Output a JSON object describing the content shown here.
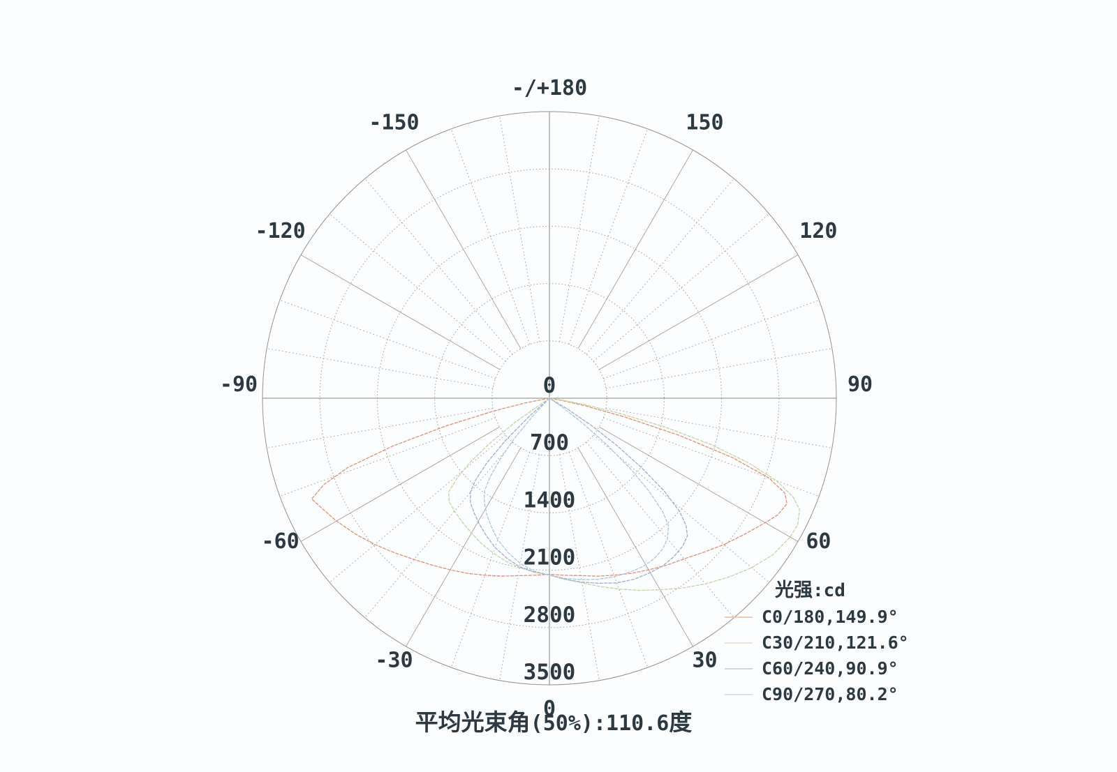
{
  "page": {
    "background": "#fcfdff",
    "text_color": "#2c3940"
  },
  "legend": {
    "title_cjk": "光强",
    "title_unit": ":cd"
  },
  "caption": {
    "prefix": "平均光束角",
    "value": "(50%):110.6",
    "suffix": "度",
    "full": "平均光束角(50%):110.6度",
    "avg_beam_angle_50pct_deg": 110.6
  },
  "chart_data": {
    "type": "line",
    "projection": "polar",
    "units": "cd",
    "angle_zero_position": "bottom",
    "rlim": [
      0,
      3500
    ],
    "radial_ticks": [
      0,
      700,
      1400,
      2100,
      2800,
      3500
    ],
    "angle_ticks": [
      {
        "angle": 0,
        "label": "0"
      },
      {
        "angle": 30,
        "label": "30"
      },
      {
        "angle": 60,
        "label": "60"
      },
      {
        "angle": 90,
        "label": "90"
      },
      {
        "angle": 120,
        "label": "120"
      },
      {
        "angle": 150,
        "label": "150"
      },
      {
        "angle": 180,
        "label": "-/+180"
      },
      {
        "angle": -30,
        "label": "-30"
      },
      {
        "angle": -60,
        "label": "-60"
      },
      {
        "angle": -90,
        "label": "-90"
      },
      {
        "angle": -120,
        "label": "-120"
      },
      {
        "angle": -150,
        "label": "-150"
      }
    ],
    "grid": {
      "ring_step": 700,
      "spoke_step_deg": 10,
      "major_spoke_step_deg": 30
    },
    "series": [
      {
        "name": "C0/180",
        "label": "C0/180,149.9°",
        "beam_angle_deg": 149.9,
        "color": "#e08f72",
        "swatch_color": "#ecccb9",
        "points": [
          [
            -82,
            0
          ],
          [
            -79,
            300
          ],
          [
            -77,
            700
          ],
          [
            -75,
            1300
          ],
          [
            -73,
            2000
          ],
          [
            -71,
            2600
          ],
          [
            -69,
            2950
          ],
          [
            -67,
            3150
          ],
          [
            -64,
            3080
          ],
          [
            -60,
            3000
          ],
          [
            -55,
            2890
          ],
          [
            -50,
            2780
          ],
          [
            -45,
            2670
          ],
          [
            -40,
            2570
          ],
          [
            -35,
            2490
          ],
          [
            -30,
            2420
          ],
          [
            -25,
            2360
          ],
          [
            -20,
            2300
          ],
          [
            -15,
            2250
          ],
          [
            -10,
            2200
          ],
          [
            -5,
            2170
          ],
          [
            0,
            2150
          ],
          [
            5,
            2170
          ],
          [
            10,
            2200
          ],
          [
            15,
            2250
          ],
          [
            20,
            2300
          ],
          [
            25,
            2360
          ],
          [
            30,
            2420
          ],
          [
            35,
            2490
          ],
          [
            40,
            2560
          ],
          [
            45,
            2660
          ],
          [
            50,
            2780
          ],
          [
            55,
            2900
          ],
          [
            60,
            3040
          ],
          [
            63,
            3130
          ],
          [
            66,
            3170
          ],
          [
            68,
            3100
          ],
          [
            70,
            2850
          ],
          [
            72,
            2350
          ],
          [
            74,
            1650
          ],
          [
            76,
            950
          ],
          [
            78,
            450
          ],
          [
            80,
            150
          ],
          [
            82,
            0
          ]
        ]
      },
      {
        "name": "C30/210",
        "label": "C30/210,121.6°",
        "beam_angle_deg": 121.6,
        "color": "#c9d2a0",
        "swatch_color": "#eae7d0",
        "points": [
          [
            -58,
            0
          ],
          [
            -55,
            500
          ],
          [
            -53,
            900
          ],
          [
            -51,
            1250
          ],
          [
            -49,
            1500
          ],
          [
            -47,
            1680
          ],
          [
            -44,
            1760
          ],
          [
            -40,
            1800
          ],
          [
            -35,
            1850
          ],
          [
            -30,
            1900
          ],
          [
            -25,
            1960
          ],
          [
            -20,
            2010
          ],
          [
            -15,
            2060
          ],
          [
            -10,
            2100
          ],
          [
            -5,
            2130
          ],
          [
            0,
            2160
          ],
          [
            5,
            2220
          ],
          [
            10,
            2290
          ],
          [
            15,
            2380
          ],
          [
            20,
            2480
          ],
          [
            25,
            2590
          ],
          [
            30,
            2700
          ],
          [
            35,
            2830
          ],
          [
            40,
            2960
          ],
          [
            45,
            3090
          ],
          [
            50,
            3220
          ],
          [
            55,
            3330
          ],
          [
            60,
            3390
          ],
          [
            63,
            3400
          ],
          [
            66,
            3340
          ],
          [
            68,
            3200
          ],
          [
            70,
            2950
          ],
          [
            72,
            2550
          ],
          [
            74,
            2050
          ],
          [
            76,
            1450
          ],
          [
            78,
            850
          ],
          [
            80,
            400
          ],
          [
            82,
            100
          ],
          [
            83,
            0
          ]
        ]
      },
      {
        "name": "C60/240",
        "label": "C60/240,90.9°",
        "beam_angle_deg": 90.9,
        "color": "#9fabc9",
        "swatch_color": "#cfd6dd",
        "points": [
          [
            -50,
            0
          ],
          [
            -48,
            350
          ],
          [
            -46,
            750
          ],
          [
            -44,
            1100
          ],
          [
            -42,
            1350
          ],
          [
            -40,
            1500
          ],
          [
            -37,
            1600
          ],
          [
            -33,
            1680
          ],
          [
            -29,
            1760
          ],
          [
            -25,
            1840
          ],
          [
            -20,
            1940
          ],
          [
            -15,
            2020
          ],
          [
            -10,
            2090
          ],
          [
            -5,
            2130
          ],
          [
            0,
            2160
          ],
          [
            5,
            2220
          ],
          [
            10,
            2280
          ],
          [
            15,
            2340
          ],
          [
            20,
            2400
          ],
          [
            25,
            2440
          ],
          [
            30,
            2460
          ],
          [
            34,
            2470
          ],
          [
            38,
            2460
          ],
          [
            42,
            2430
          ],
          [
            45,
            2380
          ],
          [
            47,
            2280
          ],
          [
            49,
            2100
          ],
          [
            51,
            1800
          ],
          [
            53,
            1400
          ],
          [
            55,
            1000
          ],
          [
            57,
            600
          ],
          [
            59,
            250
          ],
          [
            61,
            0
          ]
        ]
      },
      {
        "name": "C90/270",
        "label": "C90/270,80.2°",
        "beam_angle_deg": 80.2,
        "color": "#a9c8d9",
        "swatch_color": "#d6e4ea",
        "points": [
          [
            -45,
            0
          ],
          [
            -43,
            300
          ],
          [
            -41,
            650
          ],
          [
            -39,
            950
          ],
          [
            -37,
            1200
          ],
          [
            -35,
            1380
          ],
          [
            -32,
            1500
          ],
          [
            -28,
            1620
          ],
          [
            -24,
            1730
          ],
          [
            -20,
            1840
          ],
          [
            -15,
            1950
          ],
          [
            -10,
            2050
          ],
          [
            -5,
            2120
          ],
          [
            0,
            2160
          ],
          [
            5,
            2210
          ],
          [
            10,
            2250
          ],
          [
            15,
            2290
          ],
          [
            20,
            2320
          ],
          [
            25,
            2340
          ],
          [
            29,
            2350
          ],
          [
            33,
            2340
          ],
          [
            37,
            2300
          ],
          [
            40,
            2240
          ],
          [
            43,
            2130
          ],
          [
            45,
            1950
          ],
          [
            47,
            1650
          ],
          [
            49,
            1300
          ],
          [
            51,
            900
          ],
          [
            53,
            500
          ],
          [
            55,
            200
          ],
          [
            57,
            0
          ]
        ]
      }
    ]
  }
}
